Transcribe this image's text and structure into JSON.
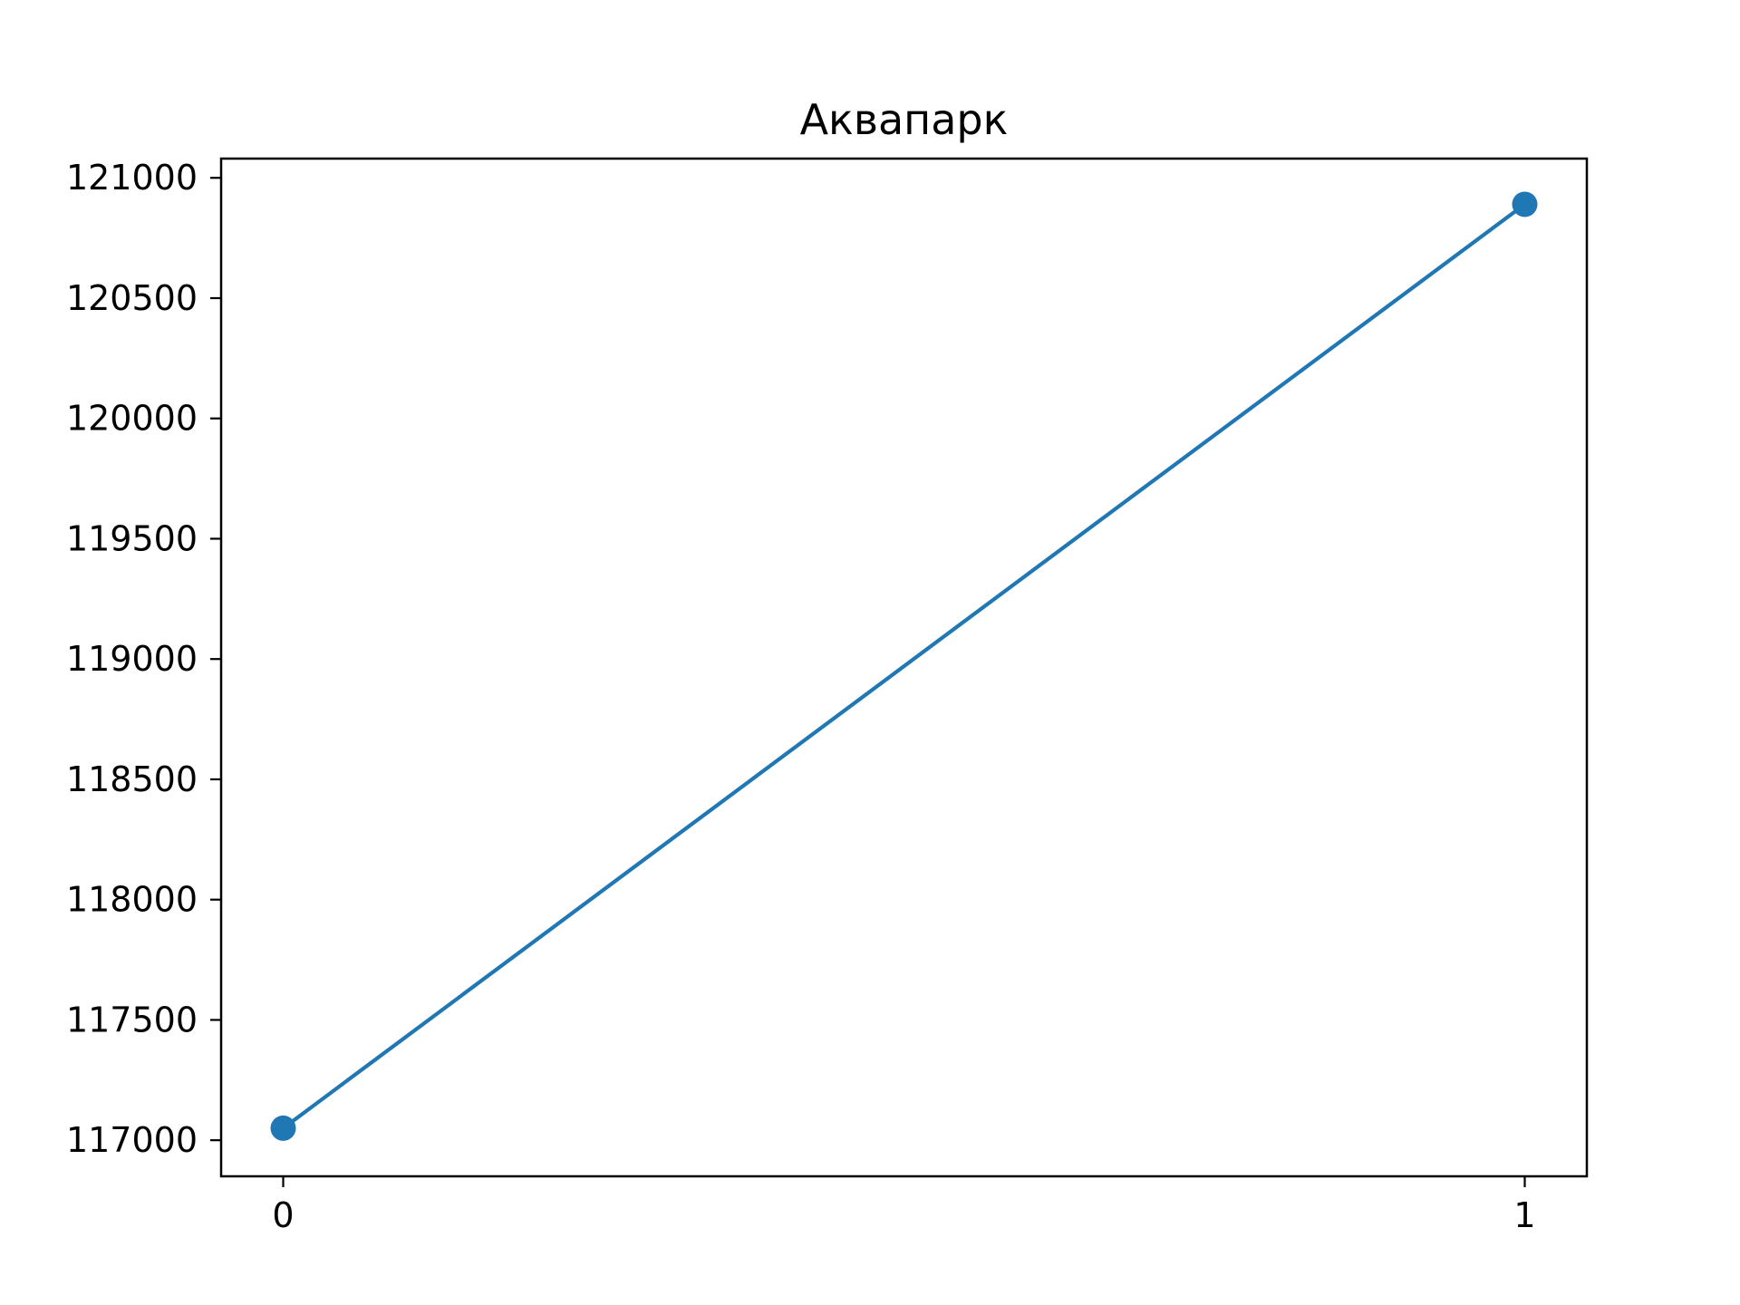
{
  "chart_data": {
    "type": "line",
    "title": "Аквапарк",
    "xlabel": "",
    "ylabel": "",
    "x": [
      0,
      1
    ],
    "x_ticks": [
      0,
      1
    ],
    "x_tick_labels": [
      "0",
      "1"
    ],
    "xlim": [
      -0.05,
      1.05
    ],
    "y_ticks": [
      117000,
      117500,
      118000,
      118500,
      119000,
      119500,
      120000,
      120500,
      121000
    ],
    "y_tick_labels": [
      "117000",
      "117500",
      "118000",
      "118500",
      "119000",
      "119500",
      "120000",
      "120500",
      "121000"
    ],
    "ylim": [
      116850,
      121080
    ],
    "grid": false,
    "series": [
      {
        "values": [
          117050,
          120890
        ],
        "color": "#1f77b4",
        "marker": "circle"
      }
    ]
  }
}
